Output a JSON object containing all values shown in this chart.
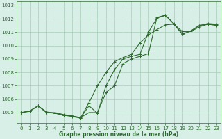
{
  "xlabel": "Graphe pression niveau de la mer (hPa)",
  "background_color": "#d8efe8",
  "grid_color": "#a8ccb8",
  "line_color": "#2d6a2d",
  "xlim_min": -0.5,
  "xlim_max": 23.5,
  "ylim_min": 1004.2,
  "ylim_max": 1013.3,
  "yticks": [
    1005,
    1006,
    1007,
    1008,
    1009,
    1010,
    1011,
    1012,
    1013
  ],
  "xticks": [
    0,
    1,
    2,
    3,
    4,
    5,
    6,
    7,
    8,
    9,
    10,
    11,
    12,
    13,
    14,
    15,
    16,
    17,
    18,
    19,
    20,
    21,
    22,
    23
  ],
  "series_a_x": [
    0,
    1,
    2,
    3,
    4,
    5,
    6,
    7,
    8,
    9,
    10,
    11,
    12,
    13,
    14,
    15,
    16,
    17,
    18,
    19,
    20,
    21,
    22,
    23
  ],
  "series_a_y": [
    1005.0,
    1005.1,
    1005.5,
    1005.0,
    1005.0,
    1004.85,
    1004.75,
    1004.6,
    1005.5,
    1004.95,
    1007.0,
    1008.2,
    1009.0,
    1009.2,
    1009.35,
    1011.0,
    1012.05,
    1012.25,
    1011.65,
    1010.85,
    1011.1,
    1011.5,
    1011.6,
    1011.55
  ],
  "series_b_x": [
    0,
    1,
    2,
    3,
    4,
    5,
    6,
    7,
    8,
    9,
    10,
    11,
    12,
    13,
    14,
    15,
    16,
    17,
    18,
    19,
    20,
    21,
    22,
    23
  ],
  "series_b_y": [
    1005.0,
    1005.1,
    1005.5,
    1005.0,
    1004.95,
    1004.8,
    1004.7,
    1004.58,
    1005.75,
    1007.0,
    1008.0,
    1008.8,
    1009.1,
    1009.35,
    1010.2,
    1010.8,
    1011.2,
    1011.55,
    1011.6,
    1011.05,
    1011.05,
    1011.4,
    1011.6,
    1011.5
  ],
  "series_c_x": [
    0,
    1,
    2,
    3,
    4,
    5,
    6,
    7,
    8,
    9,
    10,
    11,
    12,
    13,
    14,
    15,
    16,
    17,
    18,
    19,
    20,
    21,
    22,
    23
  ],
  "series_c_y": [
    1005.0,
    1005.1,
    1005.5,
    1005.05,
    1004.95,
    1004.8,
    1004.75,
    1004.62,
    1005.0,
    1005.0,
    1006.5,
    1007.0,
    1008.65,
    1009.0,
    1009.2,
    1009.4,
    1012.1,
    1012.28,
    1011.6,
    1010.85,
    1011.1,
    1011.5,
    1011.65,
    1011.6
  ],
  "tick_labelsize": 5.0,
  "xlabel_fontsize": 5.5,
  "linewidth": 0.8,
  "markersize": 3.5,
  "markeredgewidth": 0.7
}
